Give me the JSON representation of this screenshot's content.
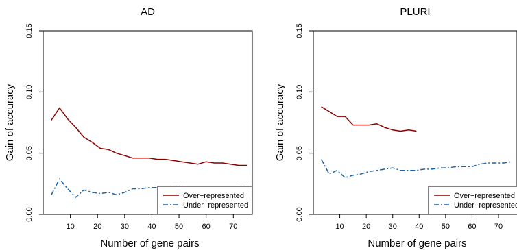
{
  "chart_data": [
    {
      "type": "line",
      "title": "AD",
      "xlabel": "Number of gene pairs",
      "ylabel": "Gain of accuracy",
      "xlim": [
        0,
        77
      ],
      "ylim": [
        0,
        0.15
      ],
      "xticks": [
        10,
        20,
        30,
        40,
        50,
        60,
        70
      ],
      "yticks": [
        "0.00",
        "0.05",
        "0.10",
        "0.15"
      ],
      "grid": false,
      "legend": "bottom-right",
      "series": [
        {
          "name": "Over−represented",
          "color": "#8b0000",
          "style": "solid",
          "x": [
            3,
            6,
            9,
            12,
            15,
            18,
            21,
            24,
            27,
            30,
            33,
            36,
            39,
            42,
            45,
            48,
            51,
            54,
            57,
            60,
            63,
            66,
            69,
            72,
            75
          ],
          "y": [
            0.077,
            0.087,
            0.078,
            0.071,
            0.063,
            0.059,
            0.054,
            0.053,
            0.05,
            0.048,
            0.046,
            0.046,
            0.046,
            0.045,
            0.045,
            0.044,
            0.043,
            0.042,
            0.041,
            0.043,
            0.042,
            0.042,
            0.041,
            0.04,
            0.04
          ]
        },
        {
          "name": "Under−represented",
          "color": "#1b63a8",
          "style": "dashdot",
          "x": [
            3,
            6,
            9,
            12,
            15,
            18,
            21,
            24,
            27,
            30,
            33,
            36,
            39,
            42,
            45,
            48,
            51,
            54,
            57,
            60,
            63,
            66,
            69,
            72,
            75
          ],
          "y": [
            0.016,
            0.029,
            0.021,
            0.014,
            0.02,
            0.018,
            0.017,
            0.018,
            0.016,
            0.018,
            0.021,
            0.021,
            0.022,
            0.022,
            0.021,
            0.023,
            0.023,
            0.022,
            0.022,
            0.022,
            0.021,
            0.022,
            0.022,
            0.023,
            0.023
          ]
        }
      ]
    },
    {
      "type": "line",
      "title": "PLURI",
      "xlabel": "Number of gene pairs",
      "ylabel": "Gain of accuracy",
      "xlim": [
        0,
        77
      ],
      "ylim": [
        0,
        0.15
      ],
      "xticks": [
        10,
        20,
        30,
        40,
        50,
        60,
        70
      ],
      "yticks": [
        "0.00",
        "0.05",
        "0.10",
        "0.15"
      ],
      "grid": false,
      "legend": "bottom-right",
      "series": [
        {
          "name": "Over−represented",
          "color": "#8b0000",
          "style": "solid",
          "x": [
            3,
            6,
            9,
            12,
            15,
            18,
            21,
            24,
            27,
            30,
            33,
            36,
            39
          ],
          "y": [
            0.088,
            0.084,
            0.08,
            0.08,
            0.073,
            0.073,
            0.073,
            0.074,
            0.071,
            0.069,
            0.068,
            0.069,
            0.068
          ]
        },
        {
          "name": "Under−represented",
          "color": "#1b63a8",
          "style": "dashdot",
          "x": [
            3,
            6,
            9,
            12,
            15,
            18,
            21,
            24,
            27,
            30,
            33,
            36,
            39,
            42,
            45,
            48,
            51,
            54,
            57,
            60,
            63,
            66,
            69,
            72,
            75
          ],
          "y": [
            0.045,
            0.033,
            0.036,
            0.03,
            0.032,
            0.033,
            0.035,
            0.036,
            0.037,
            0.038,
            0.036,
            0.036,
            0.036,
            0.037,
            0.037,
            0.038,
            0.038,
            0.039,
            0.039,
            0.039,
            0.041,
            0.042,
            0.042,
            0.042,
            0.043
          ]
        }
      ]
    }
  ]
}
